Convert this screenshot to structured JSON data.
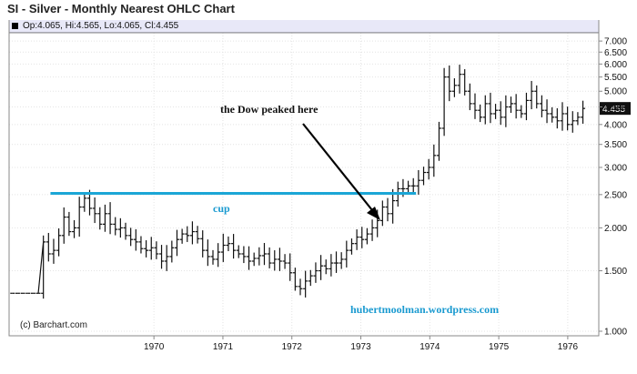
{
  "title": "SI - Silver - Monthly Nearest OHLC Chart",
  "legend": "Op:4.065, Hi:4.565, Lo:4.065, Cl:4.455",
  "credit": "(c) Barchart.com",
  "colors": {
    "bars": "#111111",
    "cup_line": "#1ba6d6",
    "text_blue": "#1a9ad0",
    "frame": "#888888",
    "grid": "#e4e4e4",
    "last_price_bg": "#111111"
  },
  "annotations": {
    "dow": "the Dow peaked here",
    "cup": "cup",
    "site": "hubertmoolman.wordpress.com"
  },
  "chart_data": {
    "type": "ohlc",
    "scale": "log",
    "ylim": [
      0.97,
      7.4
    ],
    "yticks": [
      7.0,
      6.5,
      6.0,
      5.5,
      5.0,
      4.5,
      4.0,
      3.5,
      3.0,
      2.5,
      2.0,
      1.5,
      1.0
    ],
    "ytick_labels": [
      "7.000",
      "6.500",
      "6.000",
      "5.500",
      "5.000",
      "4.500",
      "4.000",
      "3.500",
      "3.000",
      "2.500",
      "2.000",
      "1.500",
      "1.000"
    ],
    "last_price": "4.455",
    "xticks": [
      "1970",
      "1971",
      "1972",
      "1973",
      "1974",
      "1975",
      "1976"
    ],
    "year_range": [
      1967.9,
      1976.45
    ],
    "cup_line": {
      "y": 2.52,
      "x_start": 1968.5,
      "x_end": 1973.8
    },
    "closes": [
      1.29,
      1.29,
      1.29,
      1.29,
      1.29,
      1.29,
      1.82,
      1.68,
      1.72,
      1.9,
      2.15,
      1.95,
      2.0,
      2.3,
      2.44,
      2.28,
      2.2,
      2.05,
      2.2,
      2.05,
      1.98,
      2.0,
      1.9,
      1.85,
      1.82,
      1.74,
      1.72,
      1.75,
      1.68,
      1.6,
      1.65,
      1.75,
      1.85,
      1.92,
      1.9,
      1.95,
      1.86,
      1.72,
      1.65,
      1.62,
      1.7,
      1.78,
      1.8,
      1.72,
      1.68,
      1.65,
      1.6,
      1.63,
      1.66,
      1.68,
      1.58,
      1.62,
      1.6,
      1.58,
      1.48,
      1.35,
      1.33,
      1.4,
      1.45,
      1.5,
      1.55,
      1.52,
      1.58,
      1.58,
      1.62,
      1.72,
      1.8,
      1.88,
      1.85,
      1.92,
      2.0,
      2.1,
      2.3,
      2.2,
      2.4,
      2.6,
      2.6,
      2.65,
      2.65,
      2.75,
      2.9,
      3.0,
      3.25,
      3.9,
      5.5,
      5.0,
      5.2,
      5.6,
      5.0,
      4.6,
      4.4,
      4.2,
      4.6,
      4.3,
      4.4,
      4.2,
      4.5,
      4.6,
      4.4,
      4.3,
      4.7,
      5.0,
      4.6,
      4.4,
      4.3,
      4.2,
      4.1,
      4.3,
      4.0,
      4.1,
      4.2,
      4.455
    ]
  }
}
